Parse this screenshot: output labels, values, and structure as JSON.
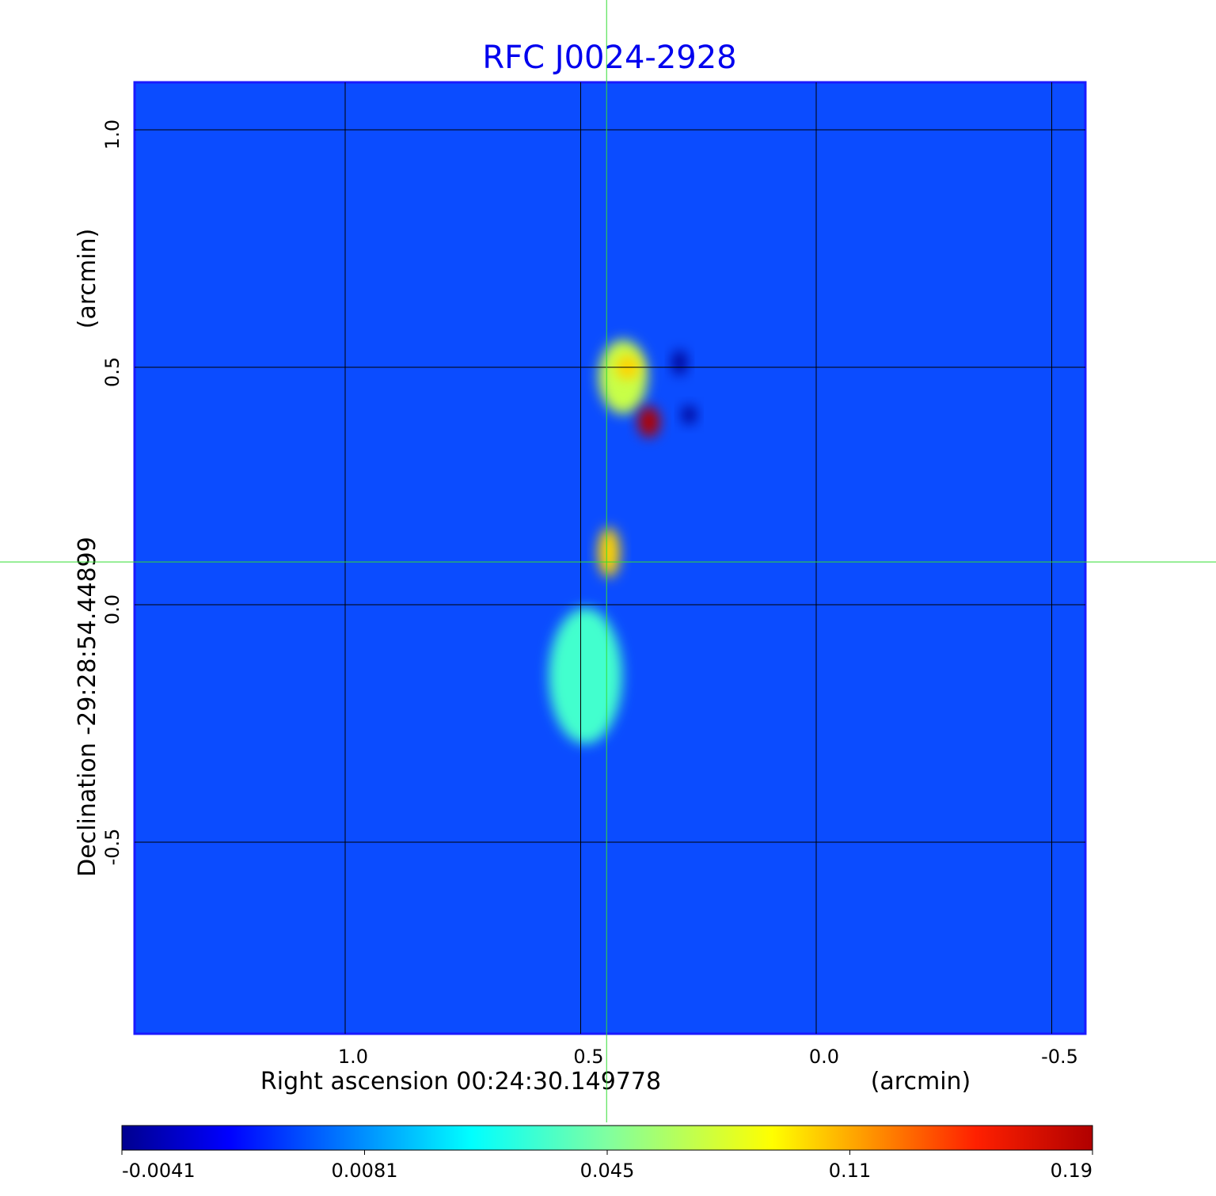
{
  "chart_data": {
    "type": "heatmap",
    "title": "RFC J0024-2928",
    "xlabel": "Right ascension  00:24:30.149778",
    "xunit": "(arcmin)",
    "ylabel": "Declination  -29:28:54.44899",
    "yunit": "(arcmin)",
    "xlim": [
      1.45,
      -0.57
    ],
    "ylim": [
      -0.9,
      1.1
    ],
    "xticks": [
      {
        "value": 1.0,
        "label": "1.0"
      },
      {
        "value": 0.5,
        "label": "0.5"
      },
      {
        "value": 0.0,
        "label": "0.0"
      },
      {
        "value": -0.5,
        "label": "-0.5"
      }
    ],
    "yticks": [
      {
        "value": 1.0,
        "label": "1.0"
      },
      {
        "value": 0.5,
        "label": "0.5"
      },
      {
        "value": 0.0,
        "label": "0.0"
      },
      {
        "value": -0.5,
        "label": "-0.5"
      }
    ],
    "grid": true,
    "crosshair": {
      "ra": 0.445,
      "dec": 0.09
    },
    "background_value": 0.0,
    "sources": [
      {
        "ra": 0.49,
        "dec": -0.15,
        "sigma_ra": 0.06,
        "sigma_dec": 0.11,
        "peak": 0.035
      },
      {
        "ra": 0.41,
        "dec": 0.48,
        "sigma_ra": 0.04,
        "sigma_dec": 0.06,
        "peak": 0.07
      },
      {
        "ra": 0.4,
        "dec": 0.5,
        "sigma_ra": 0.02,
        "sigma_dec": 0.02,
        "peak": 0.1
      },
      {
        "ra": 0.355,
        "dec": 0.385,
        "sigma_ra": 0.018,
        "sigma_dec": 0.025,
        "peak": 0.19
      },
      {
        "ra": 0.44,
        "dec": 0.11,
        "sigma_ra": 0.018,
        "sigma_dec": 0.04,
        "peak": 0.1
      },
      {
        "ra": 0.29,
        "dec": 0.51,
        "sigma_ra": 0.012,
        "sigma_dec": 0.02,
        "peak": -0.004
      },
      {
        "ra": 0.27,
        "dec": 0.4,
        "sigma_ra": 0.012,
        "sigma_dec": 0.015,
        "peak": -0.004
      }
    ],
    "colorbar": {
      "colormap": "jet",
      "ticks": [
        {
          "value": -0.0041,
          "label": "-0.0041"
        },
        {
          "value": 0.0081,
          "label": "0.0081"
        },
        {
          "value": 0.045,
          "label": "0.045"
        },
        {
          "value": 0.11,
          "label": "0.11"
        },
        {
          "value": 0.19,
          "label": "0.19"
        }
      ]
    },
    "colors": {
      "title": "#0000ee",
      "crosshair": "#33dd33",
      "background": "#0b4cff"
    }
  }
}
